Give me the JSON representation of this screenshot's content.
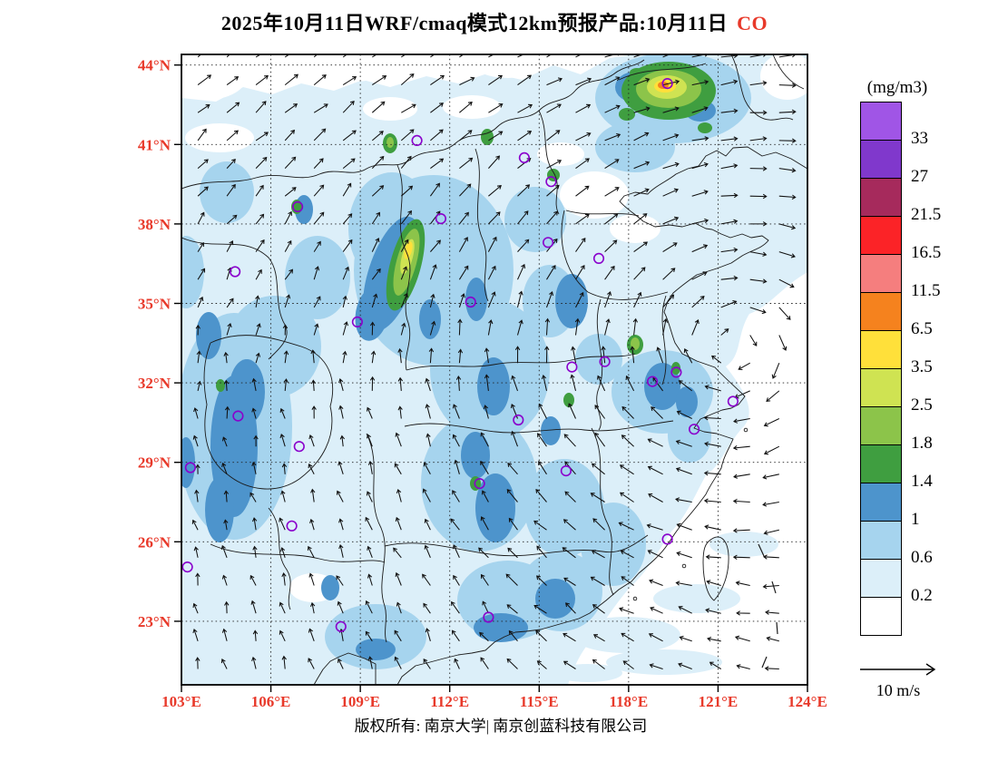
{
  "title": {
    "main": "2025年10月11日WRF/cmaq模式12km预报产品:10月11日",
    "pollutant": "CO"
  },
  "footer": {
    "text": "版权所有: 南京大学| 南京创蓝科技有限公司"
  },
  "legend": {
    "unit": "(mg/m3)",
    "labels": [
      "33",
      "27",
      "21.5",
      "16.5",
      "11.5",
      "6.5",
      "3.5",
      "2.5",
      "1.8",
      "1.4",
      "1",
      "0.6",
      "0.2"
    ],
    "colors": [
      "#A055E6",
      "#8038CC",
      "#A62A5C",
      "#FB2327",
      "#F57E7E",
      "#F5821E",
      "#FFE03A",
      "#CFE352",
      "#8CC44A",
      "#3F9E40",
      "#4D94CC",
      "#A6D4EE",
      "#DCEFF9",
      "#FFFFFF"
    ]
  },
  "wind_scale": {
    "label": "10 m/s"
  },
  "axes": {
    "lon_values": [
      103,
      106,
      109,
      112,
      115,
      118,
      121,
      124
    ],
    "lon_labels": [
      "103°E",
      "106°E",
      "109°E",
      "112°E",
      "115°E",
      "118°E",
      "121°E",
      "124°E"
    ],
    "lat_values": [
      23,
      26,
      29,
      32,
      35,
      38,
      41,
      44
    ],
    "lat_labels": [
      "23°N",
      "26°N",
      "29°N",
      "32°N",
      "35°N",
      "38°N",
      "41°N",
      "44°N"
    ]
  },
  "colors": {
    "axis_label": "#e8392a",
    "pollutant": "#e8392a",
    "marker_purple": "#8a00cc",
    "boundary": "#1a1a1a",
    "arrow": "#111111"
  },
  "chart_data": {
    "type": "heatmap",
    "title": "2025年10月11日WRF/cmaq模式12km预报产品:10月11日 CO",
    "variable": "CO surface concentration forecast",
    "unit": "mg/m3",
    "x_range": [
      103,
      124
    ],
    "y_range": [
      20.6,
      44.4
    ],
    "x_ticks": [
      "103°E",
      "106°E",
      "109°E",
      "112°E",
      "115°E",
      "118°E",
      "121°E",
      "124°E"
    ],
    "y_ticks": [
      "23°N",
      "26°N",
      "29°N",
      "32°N",
      "35°N",
      "38°N",
      "41°N",
      "44°N"
    ],
    "grid": "dotted graticule every 3 degrees",
    "legend_position": "right",
    "scale_breaks_ascending": [
      0.2,
      0.6,
      1,
      1.4,
      1.8,
      2.5,
      3.5,
      6.5,
      11.5,
      16.5,
      21.5,
      27,
      33
    ],
    "scale_colors_ascending": [
      "#FFFFFF",
      "#DCEFF9",
      "#A6D4EE",
      "#4D94CC",
      "#3F9E40",
      "#8CC44A",
      "#CFE352",
      "#FFE03A",
      "#F5821E",
      "#F57E7E",
      "#FB2327",
      "#A62A5C",
      "#8038CC",
      "#A055E6"
    ],
    "background_levels": "most of eastern/southern China between 0.2 and 1.4 mg/m3 (blue shades), seas mostly below 0.2",
    "hotspots": [
      {
        "lon": 119.3,
        "lat": 43.2,
        "peak_level": "6.5-11.5"
      },
      {
        "lon": 110.5,
        "lat": 36.5,
        "peak_level": "3.5-6.5"
      },
      {
        "lon": 117.5,
        "lat": 33.5,
        "peak_level": "1.8-2.5"
      },
      {
        "lon": 108.6,
        "lat": 40.7,
        "peak_level": "1.8-2.5"
      },
      {
        "lon": 113.2,
        "lat": 39.9,
        "peak_level": "1.4-1.8"
      },
      {
        "lon": 106.9,
        "lat": 38.7,
        "peak_level": "1.4-1.8"
      },
      {
        "lon": 113.0,
        "lat": 28.2,
        "peak_level": "1.4-1.8"
      }
    ],
    "wind_field": "surface wind vectors plotted on ~1 degree grid, reference arrow 10 m/s",
    "station_markers_lonlat": [
      [
        119.3,
        43.3
      ],
      [
        110.9,
        41.15
      ],
      [
        114.5,
        40.5
      ],
      [
        115.4,
        39.6
      ],
      [
        106.9,
        38.65
      ],
      [
        111.7,
        38.2
      ],
      [
        115.3,
        37.3
      ],
      [
        117.0,
        36.7
      ],
      [
        104.8,
        36.2
      ],
      [
        112.7,
        35.05
      ],
      [
        108.9,
        34.3
      ],
      [
        116.1,
        32.6
      ],
      [
        117.2,
        32.8
      ],
      [
        118.8,
        32.05
      ],
      [
        119.6,
        32.4
      ],
      [
        121.5,
        31.3
      ],
      [
        104.9,
        30.75
      ],
      [
        106.95,
        29.6
      ],
      [
        103.3,
        28.8
      ],
      [
        113.0,
        28.2
      ],
      [
        114.3,
        30.6
      ],
      [
        115.9,
        28.68
      ],
      [
        120.2,
        30.25
      ],
      [
        119.3,
        26.1
      ],
      [
        106.7,
        26.6
      ],
      [
        103.2,
        25.05
      ],
      [
        108.35,
        22.8
      ],
      [
        113.3,
        23.15
      ]
    ]
  }
}
